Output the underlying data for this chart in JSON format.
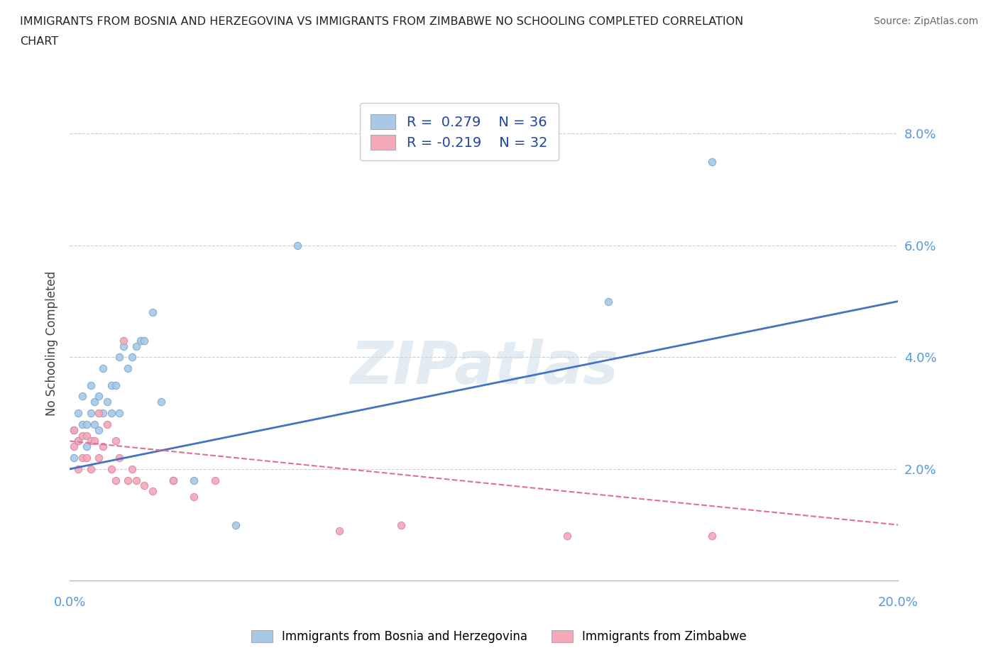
{
  "title_line1": "IMMIGRANTS FROM BOSNIA AND HERZEGOVINA VS IMMIGRANTS FROM ZIMBABWE NO SCHOOLING COMPLETED CORRELATION",
  "title_line2": "CHART",
  "source": "Source: ZipAtlas.com",
  "ylabel": "No Schooling Completed",
  "xlim": [
    0.0,
    0.2
  ],
  "ylim": [
    0.0,
    0.085
  ],
  "yticks": [
    0.0,
    0.02,
    0.04,
    0.06,
    0.08
  ],
  "ytick_labels": [
    "",
    "2.0%",
    "4.0%",
    "6.0%",
    "8.0%"
  ],
  "bosnia_color": "#a8c8e8",
  "zimbabwe_color": "#f4a8b8",
  "bosnia_line_color": "#4472c4",
  "zimbabwe_line_color": "#e07090",
  "bosnia_scatter_x": [
    0.001,
    0.001,
    0.002,
    0.002,
    0.003,
    0.003,
    0.004,
    0.004,
    0.005,
    0.005,
    0.006,
    0.006,
    0.007,
    0.007,
    0.008,
    0.008,
    0.009,
    0.01,
    0.01,
    0.011,
    0.012,
    0.012,
    0.013,
    0.014,
    0.015,
    0.016,
    0.017,
    0.018,
    0.02,
    0.022,
    0.025,
    0.03,
    0.04,
    0.055,
    0.13,
    0.155
  ],
  "bosnia_scatter_y": [
    0.022,
    0.027,
    0.025,
    0.03,
    0.028,
    0.033,
    0.024,
    0.028,
    0.03,
    0.035,
    0.032,
    0.028,
    0.033,
    0.027,
    0.038,
    0.03,
    0.032,
    0.035,
    0.03,
    0.035,
    0.04,
    0.03,
    0.042,
    0.038,
    0.04,
    0.042,
    0.043,
    0.043,
    0.048,
    0.032,
    0.018,
    0.018,
    0.01,
    0.06,
    0.05,
    0.075
  ],
  "zimbabwe_scatter_x": [
    0.001,
    0.001,
    0.002,
    0.002,
    0.003,
    0.003,
    0.004,
    0.004,
    0.005,
    0.005,
    0.006,
    0.007,
    0.007,
    0.008,
    0.009,
    0.01,
    0.011,
    0.011,
    0.012,
    0.013,
    0.014,
    0.015,
    0.016,
    0.018,
    0.02,
    0.025,
    0.03,
    0.035,
    0.065,
    0.08,
    0.12,
    0.155
  ],
  "zimbabwe_scatter_y": [
    0.024,
    0.027,
    0.02,
    0.025,
    0.022,
    0.026,
    0.022,
    0.026,
    0.02,
    0.025,
    0.025,
    0.03,
    0.022,
    0.024,
    0.028,
    0.02,
    0.025,
    0.018,
    0.022,
    0.043,
    0.018,
    0.02,
    0.018,
    0.017,
    0.016,
    0.018,
    0.015,
    0.018,
    0.009,
    0.01,
    0.008,
    0.008
  ],
  "bosnia_trendline": [
    0.02,
    0.05
  ],
  "zimbabwe_trendline": [
    0.025,
    0.01
  ],
  "watermark_text": "ZIPatlas",
  "background_color": "#ffffff",
  "grid_color": "#cccccc",
  "title_color": "#222222",
  "source_color": "#666666",
  "tick_color": "#5599dd",
  "ylabel_color": "#444444"
}
